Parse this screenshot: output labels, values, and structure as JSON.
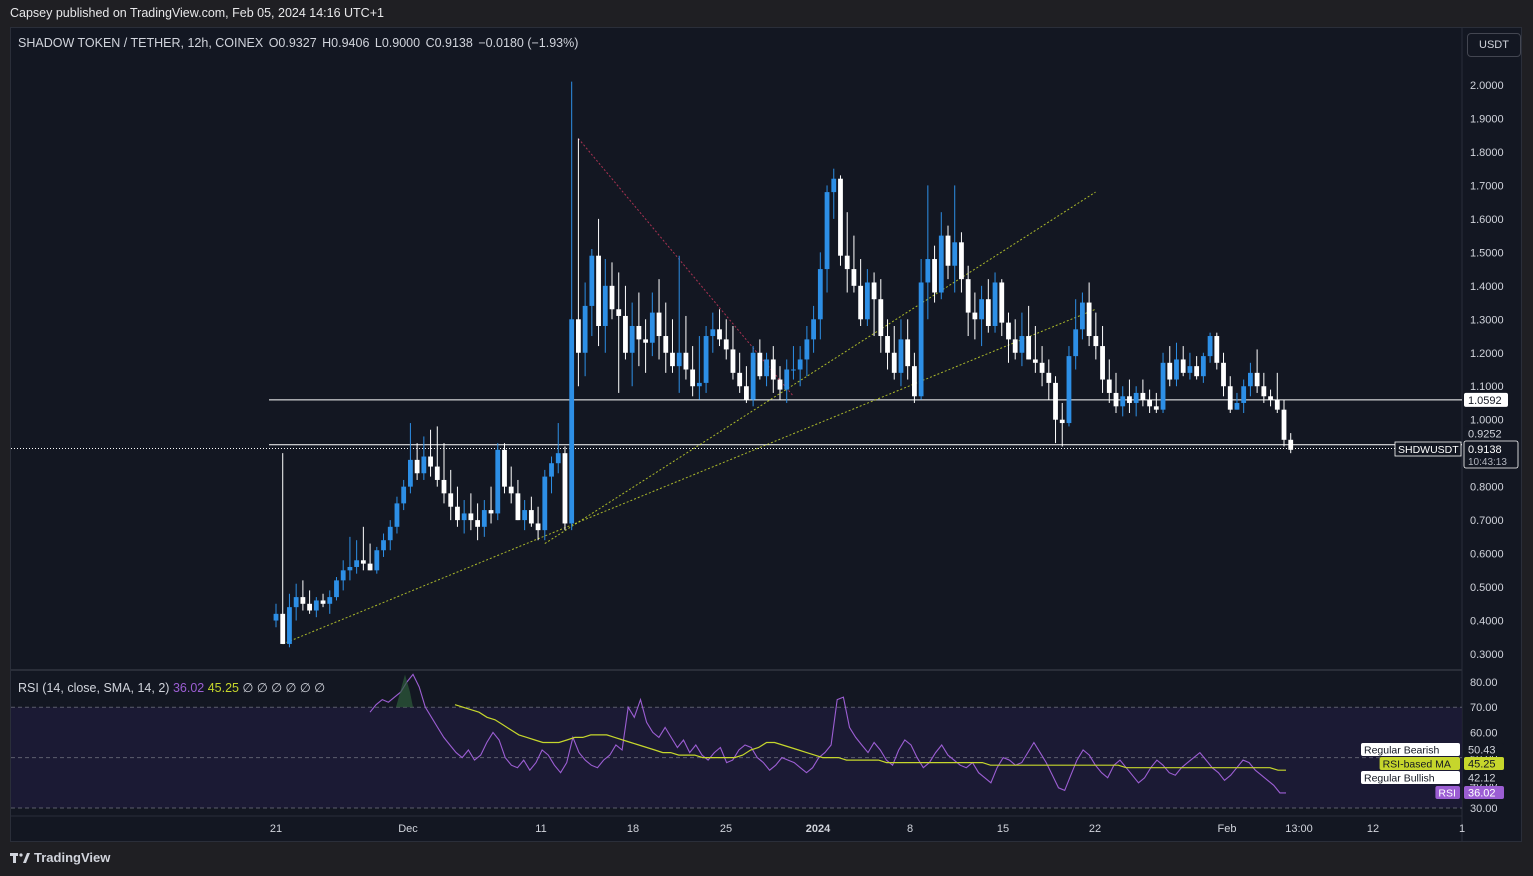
{
  "caption": "Capsey published on TradingView.com, Feb 05, 2024 14:16 UTC+1",
  "legend": {
    "symbol": "SHADOW TOKEN / TETHER, 12h, COINEX",
    "open": "O0.9327",
    "high": "H0.9406",
    "low": "L0.9000",
    "close": "C0.9138",
    "change": "−0.0180 (−1.93%)"
  },
  "currency_button": "USDT",
  "rsi_legend": {
    "name": "RSI (14, close, SMA, 14, 2)",
    "rsi_value": "36.02",
    "ma_value": "45.25",
    "empties": "∅ ∅ ∅ ∅ ∅ ∅"
  },
  "footer": "TradingView",
  "colors": {
    "background": "#131722",
    "up_candle": "#2d8fe6",
    "down_candle": "#ffffff",
    "rsi_line": "#9c5ed3",
    "rsi_ma": "#c6d62c",
    "trendline_yellow": "#c6d62c",
    "trendline_red": "#c2375a"
  },
  "chart_data": {
    "type": "candlestick",
    "y_ticks": [
      "2.0000",
      "1.9000",
      "1.8000",
      "1.7000",
      "1.6000",
      "1.5000",
      "1.4000",
      "1.3000",
      "1.2000",
      "1.1000",
      "1.0000",
      "0.8000",
      "0.7000",
      "0.6000",
      "0.5000",
      "0.4000",
      "0.3000"
    ],
    "x_ticks": [
      "21",
      "Dec",
      "11",
      "18",
      "25",
      "2024",
      "8",
      "15",
      "22",
      "Feb",
      "13:00",
      "12",
      "1"
    ],
    "ylim": [
      0.28,
      2.0
    ],
    "price_labels": {
      "level_1": "1.0592",
      "level_2": "0.9252",
      "last_price": "0.9138",
      "countdown": "10:43:13",
      "symbol_tag": "SHDWUSDT"
    },
    "horizontal_levels": [
      1.0592,
      0.9252
    ],
    "candles": [
      {
        "o": 0.4,
        "h": 0.45,
        "l": 0.38,
        "c": 0.42
      },
      {
        "o": 0.42,
        "h": 0.9,
        "l": 0.33,
        "c": 0.33
      },
      {
        "o": 0.33,
        "h": 0.48,
        "l": 0.32,
        "c": 0.44
      },
      {
        "o": 0.44,
        "h": 0.51,
        "l": 0.4,
        "c": 0.47
      },
      {
        "o": 0.47,
        "h": 0.52,
        "l": 0.43,
        "c": 0.45
      },
      {
        "o": 0.45,
        "h": 0.49,
        "l": 0.42,
        "c": 0.43
      },
      {
        "o": 0.43,
        "h": 0.47,
        "l": 0.41,
        "c": 0.46
      },
      {
        "o": 0.46,
        "h": 0.48,
        "l": 0.44,
        "c": 0.45
      },
      {
        "o": 0.45,
        "h": 0.49,
        "l": 0.42,
        "c": 0.47
      },
      {
        "o": 0.47,
        "h": 0.53,
        "l": 0.46,
        "c": 0.52
      },
      {
        "o": 0.52,
        "h": 0.58,
        "l": 0.49,
        "c": 0.55
      },
      {
        "o": 0.55,
        "h": 0.65,
        "l": 0.52,
        "c": 0.56
      },
      {
        "o": 0.56,
        "h": 0.64,
        "l": 0.54,
        "c": 0.58
      },
      {
        "o": 0.58,
        "h": 0.68,
        "l": 0.55,
        "c": 0.57
      },
      {
        "o": 0.57,
        "h": 0.63,
        "l": 0.55,
        "c": 0.55
      },
      {
        "o": 0.55,
        "h": 0.62,
        "l": 0.54,
        "c": 0.61
      },
      {
        "o": 0.61,
        "h": 0.66,
        "l": 0.59,
        "c": 0.64
      },
      {
        "o": 0.64,
        "h": 0.7,
        "l": 0.61,
        "c": 0.68
      },
      {
        "o": 0.68,
        "h": 0.77,
        "l": 0.66,
        "c": 0.75
      },
      {
        "o": 0.75,
        "h": 0.82,
        "l": 0.73,
        "c": 0.8
      },
      {
        "o": 0.8,
        "h": 0.99,
        "l": 0.78,
        "c": 0.88
      },
      {
        "o": 0.88,
        "h": 0.93,
        "l": 0.82,
        "c": 0.84
      },
      {
        "o": 0.84,
        "h": 0.95,
        "l": 0.82,
        "c": 0.89
      },
      {
        "o": 0.89,
        "h": 0.97,
        "l": 0.83,
        "c": 0.86
      },
      {
        "o": 0.86,
        "h": 0.98,
        "l": 0.8,
        "c": 0.82
      },
      {
        "o": 0.82,
        "h": 0.93,
        "l": 0.75,
        "c": 0.78
      },
      {
        "o": 0.78,
        "h": 0.85,
        "l": 0.7,
        "c": 0.74
      },
      {
        "o": 0.74,
        "h": 0.8,
        "l": 0.68,
        "c": 0.7
      },
      {
        "o": 0.7,
        "h": 0.76,
        "l": 0.66,
        "c": 0.72
      },
      {
        "o": 0.72,
        "h": 0.78,
        "l": 0.67,
        "c": 0.7
      },
      {
        "o": 0.7,
        "h": 0.75,
        "l": 0.64,
        "c": 0.68
      },
      {
        "o": 0.68,
        "h": 0.76,
        "l": 0.65,
        "c": 0.73
      },
      {
        "o": 0.73,
        "h": 0.8,
        "l": 0.69,
        "c": 0.72
      },
      {
        "o": 0.72,
        "h": 0.93,
        "l": 0.7,
        "c": 0.91
      },
      {
        "o": 0.91,
        "h": 0.93,
        "l": 0.78,
        "c": 0.8
      },
      {
        "o": 0.8,
        "h": 0.86,
        "l": 0.75,
        "c": 0.78
      },
      {
        "o": 0.78,
        "h": 0.82,
        "l": 0.7,
        "c": 0.7
      },
      {
        "o": 0.7,
        "h": 0.76,
        "l": 0.67,
        "c": 0.73
      },
      {
        "o": 0.73,
        "h": 0.77,
        "l": 0.68,
        "c": 0.69
      },
      {
        "o": 0.69,
        "h": 0.74,
        "l": 0.64,
        "c": 0.67
      },
      {
        "o": 0.67,
        "h": 0.85,
        "l": 0.64,
        "c": 0.83
      },
      {
        "o": 0.83,
        "h": 0.89,
        "l": 0.78,
        "c": 0.87
      },
      {
        "o": 0.87,
        "h": 0.99,
        "l": 0.84,
        "c": 0.9
      },
      {
        "o": 0.9,
        "h": 0.92,
        "l": 0.67,
        "c": 0.69
      },
      {
        "o": 0.69,
        "h": 2.01,
        "l": 0.67,
        "c": 1.3
      },
      {
        "o": 1.3,
        "h": 1.84,
        "l": 1.1,
        "c": 1.2
      },
      {
        "o": 1.2,
        "h": 1.41,
        "l": 1.13,
        "c": 1.34
      },
      {
        "o": 1.34,
        "h": 1.51,
        "l": 1.25,
        "c": 1.49
      },
      {
        "o": 1.49,
        "h": 1.6,
        "l": 1.22,
        "c": 1.28
      },
      {
        "o": 1.28,
        "h": 1.48,
        "l": 1.2,
        "c": 1.4
      },
      {
        "o": 1.4,
        "h": 1.47,
        "l": 1.3,
        "c": 1.33
      },
      {
        "o": 1.33,
        "h": 1.44,
        "l": 1.08,
        "c": 1.31
      },
      {
        "o": 1.31,
        "h": 1.4,
        "l": 1.18,
        "c": 1.2
      },
      {
        "o": 1.2,
        "h": 1.35,
        "l": 1.1,
        "c": 1.28
      },
      {
        "o": 1.28,
        "h": 1.38,
        "l": 1.16,
        "c": 1.24
      },
      {
        "o": 1.24,
        "h": 1.3,
        "l": 1.14,
        "c": 1.23
      },
      {
        "o": 1.23,
        "h": 1.38,
        "l": 1.19,
        "c": 1.32
      },
      {
        "o": 1.32,
        "h": 1.42,
        "l": 1.18,
        "c": 1.25
      },
      {
        "o": 1.25,
        "h": 1.35,
        "l": 1.14,
        "c": 1.2
      },
      {
        "o": 1.2,
        "h": 1.3,
        "l": 1.14,
        "c": 1.16
      },
      {
        "o": 1.16,
        "h": 1.49,
        "l": 1.08,
        "c": 1.2
      },
      {
        "o": 1.2,
        "h": 1.31,
        "l": 1.12,
        "c": 1.15
      },
      {
        "o": 1.15,
        "h": 1.22,
        "l": 1.07,
        "c": 1.1
      },
      {
        "o": 1.1,
        "h": 1.25,
        "l": 1.06,
        "c": 1.11
      },
      {
        "o": 1.11,
        "h": 1.28,
        "l": 1.08,
        "c": 1.25
      },
      {
        "o": 1.25,
        "h": 1.32,
        "l": 1.2,
        "c": 1.27
      },
      {
        "o": 1.27,
        "h": 1.33,
        "l": 1.22,
        "c": 1.24
      },
      {
        "o": 1.24,
        "h": 1.3,
        "l": 1.18,
        "c": 1.21
      },
      {
        "o": 1.21,
        "h": 1.28,
        "l": 1.12,
        "c": 1.14
      },
      {
        "o": 1.14,
        "h": 1.2,
        "l": 1.08,
        "c": 1.1
      },
      {
        "o": 1.1,
        "h": 1.16,
        "l": 1.05,
        "c": 1.06
      },
      {
        "o": 1.06,
        "h": 1.22,
        "l": 1.04,
        "c": 1.2
      },
      {
        "o": 1.2,
        "h": 1.24,
        "l": 1.12,
        "c": 1.13
      },
      {
        "o": 1.13,
        "h": 1.2,
        "l": 1.1,
        "c": 1.18
      },
      {
        "o": 1.18,
        "h": 1.22,
        "l": 1.08,
        "c": 1.12
      },
      {
        "o": 1.12,
        "h": 1.16,
        "l": 1.06,
        "c": 1.09
      },
      {
        "o": 1.09,
        "h": 1.18,
        "l": 1.05,
        "c": 1.15
      },
      {
        "o": 1.15,
        "h": 1.22,
        "l": 1.12,
        "c": 1.15
      },
      {
        "o": 1.15,
        "h": 1.22,
        "l": 1.1,
        "c": 1.18
      },
      {
        "o": 1.18,
        "h": 1.28,
        "l": 1.13,
        "c": 1.24
      },
      {
        "o": 1.24,
        "h": 1.34,
        "l": 1.2,
        "c": 1.3
      },
      {
        "o": 1.3,
        "h": 1.5,
        "l": 1.24,
        "c": 1.45
      },
      {
        "o": 1.45,
        "h": 1.7,
        "l": 1.38,
        "c": 1.68
      },
      {
        "o": 1.68,
        "h": 1.75,
        "l": 1.6,
        "c": 1.72
      },
      {
        "o": 1.72,
        "h": 1.73,
        "l": 1.46,
        "c": 1.49
      },
      {
        "o": 1.49,
        "h": 1.62,
        "l": 1.38,
        "c": 1.45
      },
      {
        "o": 1.45,
        "h": 1.55,
        "l": 1.38,
        "c": 1.4
      },
      {
        "o": 1.4,
        "h": 1.48,
        "l": 1.28,
        "c": 1.3
      },
      {
        "o": 1.3,
        "h": 1.45,
        "l": 1.28,
        "c": 1.41
      },
      {
        "o": 1.41,
        "h": 1.44,
        "l": 1.25,
        "c": 1.36
      },
      {
        "o": 1.36,
        "h": 1.42,
        "l": 1.2,
        "c": 1.25
      },
      {
        "o": 1.25,
        "h": 1.3,
        "l": 1.15,
        "c": 1.2
      },
      {
        "o": 1.2,
        "h": 1.28,
        "l": 1.12,
        "c": 1.14
      },
      {
        "o": 1.14,
        "h": 1.3,
        "l": 1.1,
        "c": 1.24
      },
      {
        "o": 1.24,
        "h": 1.3,
        "l": 1.12,
        "c": 1.16
      },
      {
        "o": 1.16,
        "h": 1.2,
        "l": 1.05,
        "c": 1.07
      },
      {
        "o": 1.07,
        "h": 1.48,
        "l": 1.06,
        "c": 1.41
      },
      {
        "o": 1.41,
        "h": 1.7,
        "l": 1.3,
        "c": 1.48
      },
      {
        "o": 1.48,
        "h": 1.52,
        "l": 1.35,
        "c": 1.38
      },
      {
        "o": 1.38,
        "h": 1.62,
        "l": 1.36,
        "c": 1.55
      },
      {
        "o": 1.55,
        "h": 1.58,
        "l": 1.42,
        "c": 1.46
      },
      {
        "o": 1.46,
        "h": 1.7,
        "l": 1.38,
        "c": 1.53
      },
      {
        "o": 1.53,
        "h": 1.56,
        "l": 1.38,
        "c": 1.42
      },
      {
        "o": 1.42,
        "h": 1.46,
        "l": 1.25,
        "c": 1.32
      },
      {
        "o": 1.32,
        "h": 1.38,
        "l": 1.24,
        "c": 1.3
      },
      {
        "o": 1.3,
        "h": 1.4,
        "l": 1.22,
        "c": 1.36
      },
      {
        "o": 1.36,
        "h": 1.42,
        "l": 1.26,
        "c": 1.28
      },
      {
        "o": 1.28,
        "h": 1.44,
        "l": 1.26,
        "c": 1.41
      },
      {
        "o": 1.41,
        "h": 1.42,
        "l": 1.25,
        "c": 1.29
      },
      {
        "o": 1.29,
        "h": 1.32,
        "l": 1.17,
        "c": 1.24
      },
      {
        "o": 1.24,
        "h": 1.3,
        "l": 1.18,
        "c": 1.2
      },
      {
        "o": 1.2,
        "h": 1.32,
        "l": 1.16,
        "c": 1.25
      },
      {
        "o": 1.25,
        "h": 1.34,
        "l": 1.18,
        "c": 1.18
      },
      {
        "o": 1.18,
        "h": 1.28,
        "l": 1.14,
        "c": 1.17
      },
      {
        "o": 1.17,
        "h": 1.22,
        "l": 1.1,
        "c": 1.14
      },
      {
        "o": 1.14,
        "h": 1.18,
        "l": 1.06,
        "c": 1.11
      },
      {
        "o": 1.11,
        "h": 1.13,
        "l": 0.93,
        "c": 1.0
      },
      {
        "o": 1.0,
        "h": 1.05,
        "l": 0.92,
        "c": 0.99
      },
      {
        "o": 0.99,
        "h": 1.22,
        "l": 0.98,
        "c": 1.19
      },
      {
        "o": 1.19,
        "h": 1.36,
        "l": 1.15,
        "c": 1.27
      },
      {
        "o": 1.27,
        "h": 1.38,
        "l": 1.24,
        "c": 1.35
      },
      {
        "o": 1.35,
        "h": 1.41,
        "l": 1.22,
        "c": 1.25
      },
      {
        "o": 1.25,
        "h": 1.32,
        "l": 1.18,
        "c": 1.22
      },
      {
        "o": 1.22,
        "h": 1.28,
        "l": 1.08,
        "c": 1.12
      },
      {
        "o": 1.12,
        "h": 1.18,
        "l": 1.05,
        "c": 1.08
      },
      {
        "o": 1.08,
        "h": 1.14,
        "l": 1.02,
        "c": 1.04
      },
      {
        "o": 1.04,
        "h": 1.1,
        "l": 1.01,
        "c": 1.07
      },
      {
        "o": 1.07,
        "h": 1.12,
        "l": 1.02,
        "c": 1.05
      },
      {
        "o": 1.05,
        "h": 1.1,
        "l": 1.01,
        "c": 1.08
      },
      {
        "o": 1.08,
        "h": 1.12,
        "l": 1.04,
        "c": 1.06
      },
      {
        "o": 1.06,
        "h": 1.09,
        "l": 1.02,
        "c": 1.04
      },
      {
        "o": 1.04,
        "h": 1.08,
        "l": 1.02,
        "c": 1.03
      },
      {
        "o": 1.03,
        "h": 1.2,
        "l": 1.02,
        "c": 1.17
      },
      {
        "o": 1.17,
        "h": 1.22,
        "l": 1.1,
        "c": 1.12
      },
      {
        "o": 1.12,
        "h": 1.23,
        "l": 1.1,
        "c": 1.18
      },
      {
        "o": 1.18,
        "h": 1.22,
        "l": 1.13,
        "c": 1.14
      },
      {
        "o": 1.14,
        "h": 1.2,
        "l": 1.12,
        "c": 1.16
      },
      {
        "o": 1.16,
        "h": 1.19,
        "l": 1.12,
        "c": 1.13
      },
      {
        "o": 1.13,
        "h": 1.2,
        "l": 1.11,
        "c": 1.19
      },
      {
        "o": 1.19,
        "h": 1.26,
        "l": 1.17,
        "c": 1.25
      },
      {
        "o": 1.25,
        "h": 1.26,
        "l": 1.15,
        "c": 1.17
      },
      {
        "o": 1.17,
        "h": 1.2,
        "l": 1.07,
        "c": 1.1
      },
      {
        "o": 1.1,
        "h": 1.13,
        "l": 1.02,
        "c": 1.03
      },
      {
        "o": 1.03,
        "h": 1.08,
        "l": 1.03,
        "c": 1.05
      },
      {
        "o": 1.05,
        "h": 1.12,
        "l": 1.02,
        "c": 1.1
      },
      {
        "o": 1.1,
        "h": 1.17,
        "l": 1.07,
        "c": 1.14
      },
      {
        "o": 1.14,
        "h": 1.21,
        "l": 1.08,
        "c": 1.1
      },
      {
        "o": 1.1,
        "h": 1.14,
        "l": 1.05,
        "c": 1.07
      },
      {
        "o": 1.07,
        "h": 1.09,
        "l": 1.04,
        "c": 1.06
      },
      {
        "o": 1.06,
        "h": 1.14,
        "l": 1.02,
        "c": 1.03
      },
      {
        "o": 1.03,
        "h": 1.06,
        "l": 0.92,
        "c": 0.94
      },
      {
        "o": 0.94,
        "h": 0.96,
        "l": 0.9,
        "c": 0.91
      }
    ],
    "trendlines": [
      {
        "color": "yellow",
        "from": [
          1,
          0.33
        ],
        "to": [
          116,
          1.33
        ]
      },
      {
        "color": "yellow",
        "from": [
          40,
          0.63
        ],
        "to": [
          116,
          1.68
        ]
      },
      {
        "color": "red",
        "from": [
          45,
          1.84
        ],
        "to": [
          77,
          1.07
        ]
      }
    ],
    "rsi": {
      "ticks": [
        "80.00",
        "70.00",
        "60.00",
        "50.00",
        "40.00",
        "30.00"
      ],
      "ylim": [
        29,
        84
      ],
      "bands": [
        70,
        50,
        30
      ],
      "rsi_values": [
        68,
        71,
        73,
        72,
        74,
        76,
        80,
        83,
        78,
        70,
        66,
        62,
        58,
        55,
        52,
        50,
        53,
        49,
        51,
        56,
        60,
        57,
        50,
        47,
        46,
        49,
        45,
        48,
        53,
        51,
        47,
        44,
        48,
        58,
        52,
        49,
        47,
        46,
        49,
        51,
        55,
        53,
        70,
        66,
        73,
        64,
        60,
        58,
        62,
        58,
        54,
        57,
        52,
        55,
        51,
        49,
        52,
        54,
        48,
        49,
        53,
        55,
        54,
        50,
        48,
        45,
        47,
        50,
        49,
        48,
        46,
        44,
        46,
        50,
        52,
        55,
        73,
        74,
        62,
        58,
        55,
        52,
        56,
        53,
        49,
        47,
        53,
        57,
        55,
        50,
        46,
        48,
        52,
        55,
        51,
        49,
        47,
        46,
        48,
        44,
        42,
        40,
        46,
        50,
        49,
        47,
        48,
        52,
        56,
        52,
        48,
        43,
        38,
        37,
        43,
        49,
        53,
        51,
        47,
        44,
        42,
        47,
        49,
        46,
        43,
        40,
        42,
        46,
        49,
        47,
        44,
        43,
        46,
        48,
        50,
        52,
        49,
        46,
        44,
        41,
        43,
        46,
        49,
        48,
        45,
        43,
        41,
        39,
        36,
        36
      ],
      "ma_values": [
        71,
        70,
        69,
        68,
        66,
        65,
        63,
        61,
        59,
        58,
        57,
        56,
        56,
        56,
        57,
        58,
        58,
        59,
        59,
        59,
        58,
        57,
        56,
        55,
        54,
        53,
        52,
        52,
        51,
        51,
        51,
        50,
        50,
        50,
        50,
        50,
        51,
        53,
        54,
        56,
        56,
        55,
        54,
        53,
        52,
        51,
        50,
        50,
        50,
        49,
        49,
        49,
        49,
        49,
        48,
        48,
        48,
        48,
        48,
        48,
        48,
        48,
        48,
        48,
        48,
        48,
        48,
        47,
        47,
        47,
        47,
        47,
        47,
        47,
        47,
        47,
        47,
        47,
        47,
        47,
        47,
        47,
        47,
        47,
        46,
        46,
        46,
        46,
        46,
        46,
        46,
        46,
        46,
        46,
        46,
        46,
        46,
        46,
        46,
        46,
        46,
        46,
        46,
        45,
        45
      ],
      "right_labels": [
        {
          "name": "Regular Bearish",
          "value": "50.43"
        },
        {
          "name": "RSI-based MA",
          "value": "45.25"
        },
        {
          "name": "Regular Bullish",
          "value": "42.12"
        },
        {
          "name": "RSI",
          "value": "36.02"
        }
      ]
    }
  }
}
